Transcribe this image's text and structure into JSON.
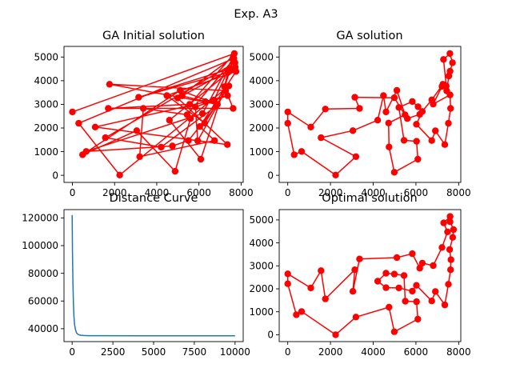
{
  "figure": {
    "suptitle": "Exp. A3",
    "accent_color": "#ff0000",
    "curve_color": "#1f77b4"
  },
  "chart_data": [
    {
      "id": "initial",
      "type": "line",
      "title": "GA Initial solution",
      "xlim": [
        -400,
        8100
      ],
      "ylim": [
        -300,
        5450
      ],
      "xticks": [
        0,
        2000,
        4000,
        6000,
        8000
      ],
      "yticks": [
        0,
        1000,
        2000,
        3000,
        4000,
        5000
      ],
      "markers": true,
      "route": [
        [
          0,
          2680
        ],
        [
          7680,
          5150
        ],
        [
          5560,
          3000
        ],
        [
          1700,
          2830
        ],
        [
          7620,
          2830
        ],
        [
          7210,
          3750
        ],
        [
          7380,
          4350
        ],
        [
          3140,
          3300
        ],
        [
          7720,
          4570
        ],
        [
          4600,
          2330
        ],
        [
          6090,
          680
        ],
        [
          7660,
          4940
        ],
        [
          300,
          2200
        ],
        [
          2240,
          10
        ],
        [
          7420,
          3780
        ],
        [
          6270,
          2210
        ],
        [
          4480,
          3370
        ],
        [
          7760,
          4390
        ],
        [
          6040,
          2060
        ],
        [
          6740,
          1470
        ],
        [
          3190,
          790
        ],
        [
          3360,
          2830
        ],
        [
          5440,
          2560
        ],
        [
          7630,
          4890
        ],
        [
          6710,
          3180
        ],
        [
          1080,
          2040
        ],
        [
          7350,
          1300
        ],
        [
          4990,
          3270
        ],
        [
          7620,
          4990
        ],
        [
          6170,
          2610
        ],
        [
          650,
          1010
        ],
        [
          4740,
          1240
        ],
        [
          5500,
          1470
        ],
        [
          6810,
          2920
        ],
        [
          4210,
          1190
        ],
        [
          1560,
          1590
        ],
        [
          7710,
          4760
        ],
        [
          7510,
          4480
        ],
        [
          5200,
          3360
        ],
        [
          6300,
          3120
        ],
        [
          7360,
          3370
        ],
        [
          5830,
          2890
        ],
        [
          5940,
          1460
        ],
        [
          7270,
          3580
        ],
        [
          1760,
          3850
        ],
        [
          6880,
          3000
        ],
        [
          5110,
          3590
        ],
        [
          480,
          870
        ],
        [
          3050,
          1890
        ],
        [
          4870,
          170
        ],
        [
          5600,
          2400
        ]
      ]
    },
    {
      "id": "ga",
      "type": "line",
      "title": "GA solution",
      "xlim": [
        -400,
        8100
      ],
      "ylim": [
        -300,
        5450
      ],
      "xticks": [
        0,
        2000,
        4000,
        6000,
        8000
      ],
      "yticks": [
        0,
        1000,
        2000,
        3000,
        4000,
        5000
      ],
      "markers": true,
      "route": [
        [
          0,
          2680
        ],
        [
          0,
          2200
        ],
        [
          300,
          870
        ],
        [
          650,
          1010
        ],
        [
          2240,
          10
        ],
        [
          3190,
          790
        ],
        [
          1560,
          1590
        ],
        [
          3050,
          1890
        ],
        [
          4210,
          2330
        ],
        [
          4480,
          3370
        ],
        [
          4600,
          2680
        ],
        [
          5110,
          3590
        ],
        [
          5490,
          2560
        ],
        [
          4720,
          2210
        ],
        [
          4740,
          1200
        ],
        [
          4990,
          130
        ],
        [
          6090,
          680
        ],
        [
          6030,
          1440
        ],
        [
          5440,
          1480
        ],
        [
          5200,
          2870
        ],
        [
          5830,
          3120
        ],
        [
          6100,
          2900
        ],
        [
          6300,
          2700
        ],
        [
          6020,
          2160
        ],
        [
          6740,
          1470
        ],
        [
          6910,
          1880
        ],
        [
          7350,
          1300
        ],
        [
          7520,
          2200
        ],
        [
          7620,
          2830
        ],
        [
          7600,
          3400
        ],
        [
          6810,
          3010
        ],
        [
          7220,
          3760
        ],
        [
          7420,
          3780
        ],
        [
          7290,
          4900
        ],
        [
          7590,
          5150
        ],
        [
          7710,
          4760
        ],
        [
          7600,
          4400
        ],
        [
          7540,
          4200
        ],
        [
          7440,
          3570
        ],
        [
          7260,
          3850
        ],
        [
          6740,
          3190
        ],
        [
          6180,
          2580
        ],
        [
          5600,
          2400
        ],
        [
          4990,
          3280
        ],
        [
          3140,
          3300
        ],
        [
          3360,
          2830
        ],
        [
          1760,
          2800
        ],
        [
          1080,
          2040
        ],
        [
          0,
          2680
        ]
      ]
    },
    {
      "id": "distance",
      "type": "line",
      "title": "Distance Curve",
      "xlim": [
        -500,
        10500
      ],
      "ylim": [
        30700,
        126000
      ],
      "xticks": [
        0,
        2500,
        5000,
        7500,
        10000
      ],
      "yticks": [
        40000,
        60000,
        80000,
        100000,
        120000
      ],
      "markers": false,
      "x": [
        0,
        20,
        50,
        80,
        110,
        150,
        200,
        260,
        320,
        400,
        500,
        700,
        1000,
        2000,
        4000,
        6000,
        8000,
        10000
      ],
      "y": [
        122000,
        95000,
        72000,
        58000,
        49000,
        43000,
        39500,
        37200,
        36300,
        35700,
        35300,
        35100,
        35000,
        34950,
        34900,
        34880,
        34870,
        34870
      ]
    },
    {
      "id": "optimal",
      "type": "line",
      "title": "Optimal solution",
      "xlim": [
        -400,
        8100
      ],
      "ylim": [
        -300,
        5450
      ],
      "xticks": [
        0,
        2000,
        4000,
        6000,
        8000
      ],
      "yticks": [
        0,
        1000,
        2000,
        3000,
        4000,
        5000
      ],
      "markers": true,
      "route": [
        [
          0,
          2650
        ],
        [
          0,
          2220
        ],
        [
          400,
          870
        ],
        [
          650,
          1010
        ],
        [
          2240,
          0
        ],
        [
          3190,
          770
        ],
        [
          4740,
          1200
        ],
        [
          4990,
          130
        ],
        [
          6090,
          680
        ],
        [
          6030,
          1440
        ],
        [
          5500,
          1460
        ],
        [
          5440,
          2580
        ],
        [
          4990,
          2640
        ],
        [
          4600,
          2680
        ],
        [
          4210,
          2330
        ],
        [
          4600,
          2050
        ],
        [
          5200,
          2040
        ],
        [
          5830,
          1900
        ],
        [
          6020,
          2150
        ],
        [
          6740,
          1470
        ],
        [
          6910,
          1880
        ],
        [
          7350,
          1300
        ],
        [
          7520,
          2200
        ],
        [
          7620,
          2830
        ],
        [
          7640,
          3270
        ],
        [
          7580,
          3710
        ],
        [
          7720,
          4240
        ],
        [
          7760,
          4580
        ],
        [
          7600,
          4920
        ],
        [
          7600,
          5150
        ],
        [
          7300,
          4870
        ],
        [
          7480,
          4480
        ],
        [
          7220,
          3800
        ],
        [
          6810,
          3010
        ],
        [
          6300,
          3120
        ],
        [
          6180,
          2900
        ],
        [
          5830,
          3530
        ],
        [
          5110,
          3360
        ],
        [
          3360,
          3300
        ],
        [
          3050,
          1890
        ],
        [
          3140,
          2830
        ],
        [
          1760,
          1560
        ],
        [
          1560,
          2790
        ],
        [
          1080,
          2040
        ],
        [
          0,
          2650
        ]
      ]
    }
  ]
}
